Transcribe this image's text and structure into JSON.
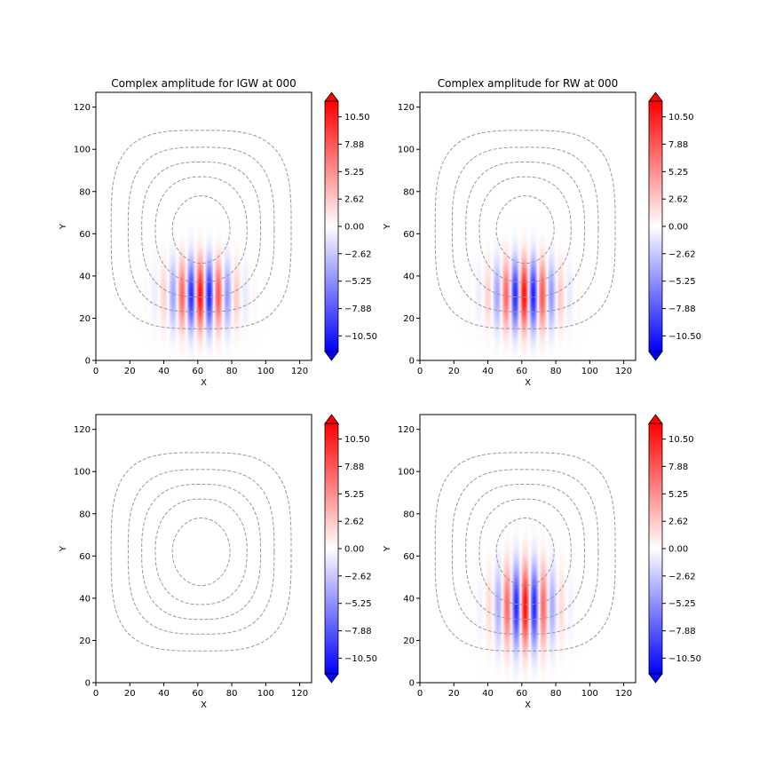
{
  "chart_data": [
    {
      "type": "heatmap",
      "title": "Complex amplitude for IGW at 000",
      "xlabel": "X",
      "ylabel": "Y",
      "xlim": [
        0,
        127
      ],
      "ylim": [
        0,
        127
      ],
      "xticks": [
        "0",
        "20",
        "40",
        "60",
        "80",
        "100",
        "120"
      ],
      "yticks": [
        "0",
        "20",
        "40",
        "60",
        "80",
        "100",
        "120"
      ],
      "colorbar": {
        "ticks": [
          "10.50",
          "7.88",
          "5.25",
          "2.62",
          "0.00",
          "−2.62",
          "−5.25",
          "−7.88",
          "−10.50"
        ],
        "range": [
          -12,
          12
        ],
        "extend": "both"
      },
      "contours": {
        "center": [
          62,
          62
        ],
        "rx": [
          17,
          27,
          35,
          43,
          53
        ],
        "ry": [
          16,
          25,
          32,
          39,
          47
        ],
        "style": "dashed",
        "color": "#999999"
      },
      "field": {
        "center": [
          62,
          31
        ],
        "sx": 12,
        "sy": 11,
        "kx": 0.58,
        "phase": 0.35,
        "amp": 11.5
      }
    },
    {
      "type": "heatmap",
      "title": "Complex amplitude for RW at 000",
      "xlabel": "X",
      "ylabel": "Y",
      "xlim": [
        0,
        127
      ],
      "ylim": [
        0,
        127
      ],
      "xticks": [
        "0",
        "20",
        "40",
        "60",
        "80",
        "100",
        "120"
      ],
      "yticks": [
        "0",
        "20",
        "40",
        "60",
        "80",
        "100",
        "120"
      ],
      "colorbar": {
        "ticks": [
          "10.50",
          "7.88",
          "5.25",
          "2.62",
          "0.00",
          "−2.62",
          "−5.25",
          "−7.88",
          "−10.50"
        ],
        "range": [
          -12,
          12
        ],
        "extend": "both"
      },
      "contours": {
        "center": [
          62,
          62
        ],
        "rx": [
          17,
          27,
          35,
          43,
          53
        ],
        "ry": [
          16,
          25,
          32,
          39,
          47
        ],
        "style": "dashed",
        "color": "#999999"
      },
      "field": {
        "center": [
          62,
          31
        ],
        "sx": 12,
        "sy": 11,
        "kx": 0.58,
        "phase": 0.35,
        "amp": 11.5
      }
    },
    {
      "type": "heatmap",
      "title": "",
      "xlabel": "X",
      "ylabel": "Y",
      "xlim": [
        0,
        127
      ],
      "ylim": [
        0,
        127
      ],
      "xticks": [
        "0",
        "20",
        "40",
        "60",
        "80",
        "100",
        "120"
      ],
      "yticks": [
        "0",
        "20",
        "40",
        "60",
        "80",
        "100",
        "120"
      ],
      "colorbar": {
        "ticks": [
          "10.50",
          "7.88",
          "5.25",
          "2.62",
          "0.00",
          "−2.62",
          "−5.25",
          "−7.88",
          "−10.50"
        ],
        "range": [
          -12,
          12
        ],
        "extend": "both"
      },
      "contours": {
        "center": [
          62,
          62
        ],
        "rx": [
          17,
          27,
          35,
          43,
          53
        ],
        "ry": [
          16,
          25,
          32,
          39,
          47
        ],
        "style": "dashed",
        "color": "#999999"
      },
      "field": {
        "center": [
          62,
          31
        ],
        "sx": 12,
        "sy": 11,
        "kx": 0.58,
        "phase": 0.35,
        "amp": 0.0
      }
    },
    {
      "type": "heatmap",
      "title": "",
      "xlabel": "X",
      "ylabel": "Y",
      "xlim": [
        0,
        127
      ],
      "ylim": [
        0,
        127
      ],
      "xticks": [
        "0",
        "20",
        "40",
        "60",
        "80",
        "100",
        "120"
      ],
      "yticks": [
        "0",
        "20",
        "40",
        "60",
        "80",
        "100",
        "120"
      ],
      "colorbar": {
        "ticks": [
          "10.50",
          "7.88",
          "5.25",
          "2.62",
          "0.00",
          "−2.62",
          "−5.25",
          "−7.88",
          "−10.50"
        ],
        "range": [
          -12,
          12
        ],
        "extend": "both"
      },
      "contours": {
        "center": [
          62,
          62
        ],
        "rx": [
          17,
          27,
          35,
          43,
          53
        ],
        "ry": [
          16,
          25,
          32,
          39,
          47
        ],
        "style": "dashed",
        "color": "#999999"
      },
      "field": {
        "center": [
          62,
          36
        ],
        "sx": 11,
        "sy": 13,
        "kx": 0.58,
        "phase": 0.0,
        "amp": 11.5
      }
    }
  ]
}
